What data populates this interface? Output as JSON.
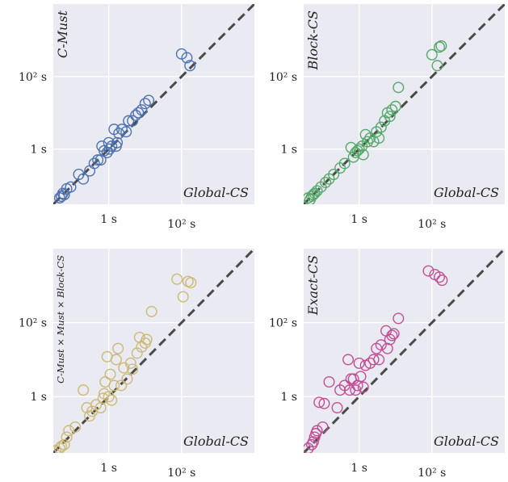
{
  "figure": {
    "background": "#ffffff",
    "panel_background": "#eaeaf2",
    "grid_color": "#ffffff",
    "diagonal_color": "#4a4a4a"
  },
  "chart_data": [
    {
      "type": "scatter",
      "xlabel": "Global-CS",
      "ylabel": "C-Must",
      "scale": "log",
      "xlim": [
        0.03,
        10000
      ],
      "ylim": [
        0.03,
        10000
      ],
      "xticks": [
        "1 s",
        "10² s"
      ],
      "yticks": [
        "1 s",
        "10² s"
      ],
      "grid": true,
      "diagonal": "y = x",
      "color": "#4c72b0",
      "marker": "hollow-circle",
      "points": [
        [
          0.045,
          0.045
        ],
        [
          0.05,
          0.05
        ],
        [
          0.055,
          0.06
        ],
        [
          0.06,
          0.055
        ],
        [
          0.07,
          0.08
        ],
        [
          0.09,
          0.09
        ],
        [
          0.15,
          0.2
        ],
        [
          0.2,
          0.15
        ],
        [
          0.3,
          0.25
        ],
        [
          0.4,
          0.4
        ],
        [
          0.5,
          0.5
        ],
        [
          0.6,
          0.5
        ],
        [
          0.65,
          1.2
        ],
        [
          0.75,
          0.9
        ],
        [
          0.9,
          0.8
        ],
        [
          1.0,
          1.5
        ],
        [
          1.05,
          1.0
        ],
        [
          1.2,
          1.2
        ],
        [
          1.4,
          3.5
        ],
        [
          1.6,
          1.2
        ],
        [
          1.7,
          1.5
        ],
        [
          1.9,
          2.7
        ],
        [
          2.3,
          3.5
        ],
        [
          3.0,
          3.0
        ],
        [
          3.5,
          6.0
        ],
        [
          4.5,
          6.0
        ],
        [
          5.5,
          8.5
        ],
        [
          6.5,
          10.0
        ],
        [
          8.0,
          12.0
        ],
        [
          10.0,
          18.0
        ],
        [
          12.5,
          22.0
        ],
        [
          100.0,
          420.0
        ],
        [
          140.0,
          330.0
        ],
        [
          170.0,
          200.0
        ]
      ]
    },
    {
      "type": "scatter",
      "xlabel": "Global-CS",
      "ylabel": "Block-CS",
      "scale": "log",
      "xlim": [
        0.03,
        10000
      ],
      "ylim": [
        0.03,
        10000
      ],
      "xticks": [
        "1 s",
        "10² s"
      ],
      "yticks": [
        "1 s",
        "10² s"
      ],
      "grid": true,
      "diagonal": "y = x",
      "color": "#55a868",
      "marker": "hollow-circle",
      "points": [
        [
          0.04,
          0.045
        ],
        [
          0.045,
          0.04
        ],
        [
          0.05,
          0.05
        ],
        [
          0.055,
          0.055
        ],
        [
          0.06,
          0.06
        ],
        [
          0.07,
          0.07
        ],
        [
          0.09,
          0.09
        ],
        [
          0.12,
          0.12
        ],
        [
          0.15,
          0.15
        ],
        [
          0.2,
          0.2
        ],
        [
          0.3,
          0.3
        ],
        [
          0.4,
          0.4
        ],
        [
          0.6,
          1.1
        ],
        [
          0.7,
          0.6
        ],
        [
          0.8,
          0.8
        ],
        [
          0.9,
          0.9
        ],
        [
          1.0,
          1.0
        ],
        [
          1.2,
          1.2
        ],
        [
          1.3,
          0.7
        ],
        [
          1.5,
          2.5
        ],
        [
          1.7,
          1.6
        ],
        [
          2.0,
          2.0
        ],
        [
          2.5,
          1.6
        ],
        [
          3.0,
          3.0
        ],
        [
          3.5,
          2.0
        ],
        [
          4.0,
          4.0
        ],
        [
          5.0,
          6.0
        ],
        [
          6.0,
          10.0
        ],
        [
          7.0,
          8.0
        ],
        [
          8.0,
          12.0
        ],
        [
          10.0,
          15.0
        ],
        [
          12.0,
          50.0
        ],
        [
          100.0,
          400.0
        ],
        [
          140.0,
          200.0
        ],
        [
          160.0,
          650.0
        ],
        [
          180.0,
          700.0
        ]
      ]
    },
    {
      "type": "scatter",
      "xlabel": "Global-CS",
      "ylabel": "C-Must × Must × Block-CS",
      "scale": "log",
      "xlim": [
        0.03,
        10000
      ],
      "ylim": [
        0.03,
        10000
      ],
      "xticks": [
        "1 s",
        "10² s"
      ],
      "yticks": [
        "1 s",
        "10² s"
      ],
      "grid": true,
      "diagonal": "y = x",
      "color": "#ccb974",
      "marker": "hollow-circle",
      "points": [
        [
          0.035,
          0.035
        ],
        [
          0.045,
          0.04
        ],
        [
          0.05,
          0.045
        ],
        [
          0.06,
          0.05
        ],
        [
          0.07,
          0.08
        ],
        [
          0.08,
          0.12
        ],
        [
          0.12,
          0.15
        ],
        [
          0.2,
          1.5
        ],
        [
          0.25,
          0.5
        ],
        [
          0.3,
          0.3
        ],
        [
          0.35,
          0.4
        ],
        [
          0.45,
          0.6
        ],
        [
          0.6,
          0.5
        ],
        [
          0.7,
          0.9
        ],
        [
          0.75,
          1.2
        ],
        [
          0.8,
          2.5
        ],
        [
          0.9,
          12.0
        ],
        [
          1.0,
          1.0
        ],
        [
          1.1,
          4.0
        ],
        [
          1.2,
          0.8
        ],
        [
          1.4,
          2.0
        ],
        [
          1.6,
          10.0
        ],
        [
          1.8,
          20.0
        ],
        [
          2.2,
          2.0
        ],
        [
          2.6,
          6.0
        ],
        [
          3.2,
          3.0
        ],
        [
          4.0,
          8.0
        ],
        [
          4.5,
          5.5
        ],
        [
          6.0,
          15.0
        ],
        [
          7.0,
          40.0
        ],
        [
          8.0,
          22.0
        ],
        [
          10.0,
          28.0
        ],
        [
          11.0,
          35.0
        ],
        [
          15.0,
          200.0
        ],
        [
          75.0,
          1500.0
        ],
        [
          110.0,
          500.0
        ],
        [
          150.0,
          1300.0
        ],
        [
          180.0,
          1200.0
        ]
      ]
    },
    {
      "type": "scatter",
      "xlabel": "Global-CS",
      "ylabel": "Exact-CS",
      "scale": "log",
      "xlim": [
        0.03,
        10000
      ],
      "ylim": [
        0.03,
        10000
      ],
      "xticks": [
        "1 s",
        "10² s"
      ],
      "yticks": [
        "1 s",
        "10² s"
      ],
      "grid": true,
      "diagonal": "y = x",
      "color": "#c44e96",
      "marker": "hollow-circle",
      "points": [
        [
          0.04,
          0.04
        ],
        [
          0.05,
          0.05
        ],
        [
          0.055,
          0.06
        ],
        [
          0.06,
          0.08
        ],
        [
          0.065,
          0.1
        ],
        [
          0.07,
          0.12
        ],
        [
          0.08,
          0.7
        ],
        [
          0.1,
          0.15
        ],
        [
          0.11,
          0.65
        ],
        [
          0.15,
          2.5
        ],
        [
          0.25,
          0.5
        ],
        [
          0.3,
          1.5
        ],
        [
          0.4,
          2.0
        ],
        [
          0.5,
          10.0
        ],
        [
          0.55,
          1.5
        ],
        [
          0.6,
          3.0
        ],
        [
          0.7,
          3.0
        ],
        [
          0.8,
          1.5
        ],
        [
          0.9,
          2.0
        ],
        [
          1.0,
          8.0
        ],
        [
          1.1,
          3.5
        ],
        [
          1.3,
          1.8
        ],
        [
          1.5,
          7.0
        ],
        [
          2.0,
          8.0
        ],
        [
          2.5,
          10.0
        ],
        [
          3.0,
          20.0
        ],
        [
          3.5,
          10.0
        ],
        [
          4.0,
          25.0
        ],
        [
          5.5,
          60.0
        ],
        [
          6.0,
          20.0
        ],
        [
          7.0,
          35.0
        ],
        [
          8.0,
          45.0
        ],
        [
          9.0,
          50.0
        ],
        [
          12.0,
          130.0
        ],
        [
          80.0,
          2500.0
        ],
        [
          120.0,
          2000.0
        ],
        [
          160.0,
          1700.0
        ],
        [
          190.0,
          1400.0
        ]
      ]
    }
  ]
}
